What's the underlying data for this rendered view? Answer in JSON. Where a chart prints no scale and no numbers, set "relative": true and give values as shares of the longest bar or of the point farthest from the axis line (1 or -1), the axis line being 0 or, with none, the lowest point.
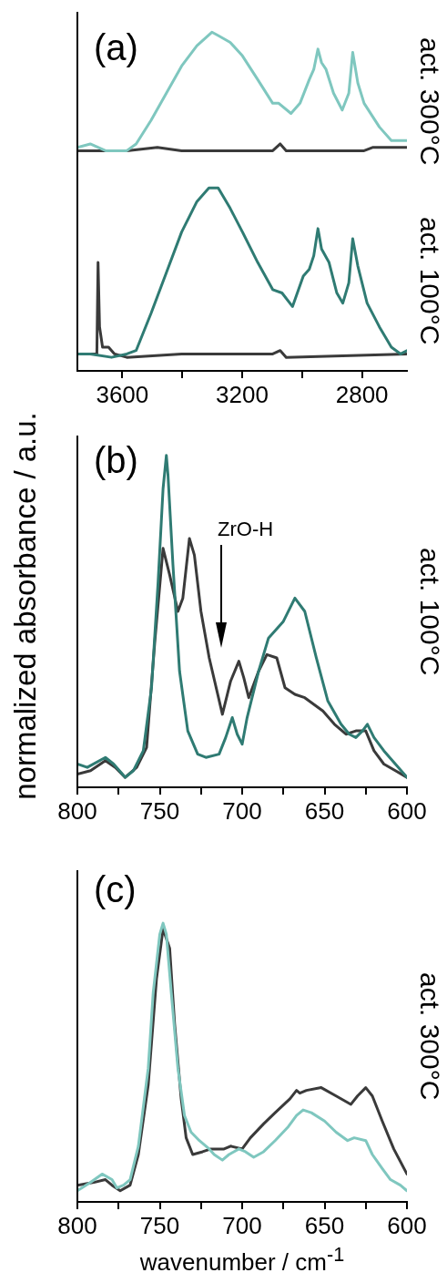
{
  "chart_data": [
    {
      "type": "line",
      "title": "(a)",
      "relative": true,
      "legend": false,
      "marker": "none",
      "xlim": [
        3750,
        2650
      ],
      "xticks": [
        3600,
        {
          "value": 3400,
          "label": null
        },
        3200,
        {
          "value": 3000,
          "label": null
        },
        2800
      ],
      "annotations": [
        "act. 300°C",
        "act. 100°C"
      ],
      "series": [
        {
          "color": "#7fc7bf",
          "x": [
            3750,
            3707,
            3656,
            3585,
            3554,
            3504,
            3453,
            3402,
            3351,
            3301,
            3280,
            3240,
            3199,
            3148,
            3098,
            3078,
            3037,
            3007,
            2976,
            2961,
            2947,
            2935,
            2920,
            2895,
            2866,
            2844,
            2831,
            2814,
            2793,
            2742,
            2702,
            2650
          ],
          "values": [
            0.66,
            0.67,
            0.65,
            0.65,
            0.67,
            0.74,
            0.82,
            0.9,
            0.96,
            1.0,
            0.99,
            0.97,
            0.93,
            0.86,
            0.79,
            0.79,
            0.76,
            0.79,
            0.86,
            0.89,
            0.95,
            0.91,
            0.89,
            0.82,
            0.77,
            0.82,
            0.94,
            0.85,
            0.79,
            0.72,
            0.68,
            0.68
          ]
        },
        {
          "color": "#3a3a3a",
          "x": [
            3750,
            3585,
            3483,
            3402,
            3098,
            3073,
            3053,
            2793,
            2763,
            2650
          ],
          "values": [
            0.65,
            0.65,
            0.66,
            0.65,
            0.65,
            0.67,
            0.65,
            0.65,
            0.66,
            0.66
          ]
        },
        {
          "color": "#2f7b73",
          "x": [
            3750,
            3707,
            3636,
            3585,
            3554,
            3504,
            3453,
            3402,
            3351,
            3311,
            3280,
            3240,
            3199,
            3148,
            3098,
            3067,
            3032,
            2996,
            2976,
            2961,
            2947,
            2935,
            2910,
            2884,
            2864,
            2844,
            2831,
            2814,
            2783,
            2742,
            2702,
            2671,
            2650
          ],
          "values": [
            0.05,
            0.05,
            0.04,
            0.05,
            0.06,
            0.17,
            0.29,
            0.41,
            0.5,
            0.54,
            0.54,
            0.48,
            0.41,
            0.32,
            0.24,
            0.23,
            0.19,
            0.28,
            0.3,
            0.34,
            0.42,
            0.36,
            0.32,
            0.23,
            0.2,
            0.26,
            0.39,
            0.31,
            0.2,
            0.13,
            0.07,
            0.05,
            0.06
          ]
        },
        {
          "color": "#3a3a3a",
          "x": [
            3750,
            3685,
            3681,
            3676,
            3666,
            3646,
            3626,
            3585,
            3402,
            3250,
            3098,
            3073,
            3053,
            2650
          ],
          "values": [
            0.05,
            0.05,
            0.32,
            0.13,
            0.07,
            0.07,
            0.05,
            0.04,
            0.05,
            0.05,
            0.05,
            0.06,
            0.04,
            0.05
          ]
        }
      ]
    },
    {
      "type": "line",
      "title": "(b)",
      "ylabel": "normalized absorbance / a.u.",
      "relative": true,
      "legend": false,
      "marker": "none",
      "xlim": [
        800,
        600
      ],
      "xticks": [
        800,
        {
          "value": 775,
          "label": null
        },
        750,
        {
          "value": 725,
          "label": null
        },
        700,
        {
          "value": 675,
          "label": null
        },
        650,
        {
          "value": 625,
          "label": null
        },
        600
      ],
      "annotations": [
        "act. 100°C",
        "ZrO-H"
      ],
      "series": [
        {
          "color": "#2f7b73",
          "x": [
            800,
            794,
            783,
            778,
            771,
            766,
            760,
            755,
            751,
            748,
            746,
            745,
            742,
            738,
            733,
            727,
            722,
            714,
            710,
            706,
            703,
            700,
            697,
            690,
            684,
            675,
            668,
            662,
            655,
            648,
            640,
            635,
            631,
            627,
            624,
            620,
            614,
            607,
            600
          ],
          "values": [
            0.07,
            0.06,
            0.09,
            0.07,
            0.03,
            0.05,
            0.11,
            0.3,
            0.62,
            0.9,
            1.0,
            0.94,
            0.67,
            0.35,
            0.17,
            0.1,
            0.09,
            0.1,
            0.15,
            0.21,
            0.16,
            0.13,
            0.21,
            0.35,
            0.45,
            0.5,
            0.57,
            0.53,
            0.39,
            0.26,
            0.19,
            0.16,
            0.15,
            0.17,
            0.19,
            0.15,
            0.11,
            0.07,
            0.03
          ]
        },
        {
          "color": "#3a3a3a",
          "x": [
            800,
            792,
            783,
            777,
            771,
            764,
            758,
            753,
            748,
            744,
            739,
            736,
            732,
            729,
            725,
            720,
            712,
            707,
            702,
            699,
            696,
            690,
            685,
            679,
            674,
            668,
            662,
            651,
            644,
            637,
            631,
            625,
            620,
            614,
            607,
            600
          ],
          "values": [
            0.04,
            0.05,
            0.08,
            0.06,
            0.03,
            0.06,
            0.12,
            0.44,
            0.72,
            0.64,
            0.53,
            0.57,
            0.75,
            0.7,
            0.53,
            0.39,
            0.22,
            0.32,
            0.38,
            0.33,
            0.27,
            0.35,
            0.4,
            0.39,
            0.3,
            0.28,
            0.27,
            0.23,
            0.19,
            0.16,
            0.17,
            0.17,
            0.11,
            0.07,
            0.05,
            0.03
          ]
        }
      ]
    },
    {
      "type": "line",
      "title": "(c)",
      "xlabel": "wavenumber / cm$^{-1}$",
      "relative": true,
      "legend": false,
      "marker": "none",
      "xlim": [
        800,
        600
      ],
      "xticks": [
        800,
        {
          "value": 775,
          "label": null
        },
        750,
        {
          "value": 725,
          "label": null
        },
        700,
        {
          "value": 675,
          "label": null
        },
        650,
        {
          "value": 625,
          "label": null
        },
        600
      ],
      "annotations": [
        "act. 300°C"
      ],
      "series": [
        {
          "color": "#7fc7bf",
          "x": [
            800,
            792,
            785,
            779,
            776,
            772,
            768,
            763,
            757,
            754,
            750,
            748,
            746,
            743,
            739,
            735,
            731,
            726,
            720,
            717,
            712,
            708,
            702,
            698,
            693,
            687,
            680,
            672,
            667,
            663,
            658,
            650,
            643,
            636,
            632,
            625,
            621,
            615,
            610,
            604,
            600
          ],
          "values": [
            0.04,
            0.07,
            0.1,
            0.08,
            0.05,
            0.06,
            0.08,
            0.2,
            0.48,
            0.75,
            0.96,
            1.0,
            0.96,
            0.75,
            0.48,
            0.31,
            0.25,
            0.22,
            0.19,
            0.17,
            0.15,
            0.17,
            0.19,
            0.18,
            0.16,
            0.18,
            0.22,
            0.27,
            0.31,
            0.33,
            0.32,
            0.29,
            0.25,
            0.22,
            0.23,
            0.22,
            0.17,
            0.12,
            0.08,
            0.06,
            0.04
          ]
        },
        {
          "color": "#3a3a3a",
          "x": [
            800,
            790,
            783,
            779,
            774,
            768,
            763,
            757,
            752,
            748,
            744,
            741,
            737,
            734,
            730,
            724,
            719,
            711,
            707,
            700,
            695,
            687,
            680,
            671,
            667,
            665,
            661,
            652,
            643,
            634,
            630,
            625,
            621,
            615,
            608,
            600
          ],
          "values": [
            0.06,
            0.07,
            0.08,
            0.06,
            0.04,
            0.06,
            0.17,
            0.42,
            0.8,
            0.98,
            0.91,
            0.64,
            0.37,
            0.23,
            0.17,
            0.18,
            0.19,
            0.19,
            0.2,
            0.19,
            0.23,
            0.28,
            0.32,
            0.37,
            0.4,
            0.39,
            0.4,
            0.41,
            0.38,
            0.35,
            0.38,
            0.41,
            0.38,
            0.29,
            0.19,
            0.1
          ]
        }
      ]
    }
  ]
}
